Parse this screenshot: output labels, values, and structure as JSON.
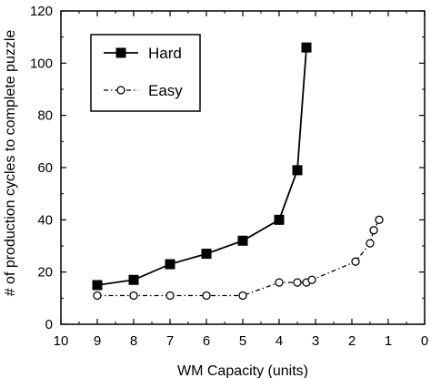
{
  "chart_data": {
    "type": "line",
    "title": "",
    "xlabel": "WM Capacity (units)",
    "ylabel": "# of production cycles to complete puzzle",
    "xlim": [
      10,
      0
    ],
    "ylim": [
      0,
      120
    ],
    "x_reversed": true,
    "x_ticks": [
      10,
      9,
      8,
      7,
      6,
      5,
      4,
      3,
      2,
      1,
      0
    ],
    "y_ticks": [
      0,
      20,
      40,
      60,
      80,
      100,
      120
    ],
    "grid": false,
    "legend_position": "top-left",
    "series": [
      {
        "name": "Hard",
        "marker": "filled-square",
        "line": "solid",
        "color": "#000000",
        "x": [
          9,
          8,
          7,
          6,
          5,
          4,
          3.5,
          3.25
        ],
        "y": [
          15,
          17,
          23,
          27,
          32,
          40,
          59,
          106
        ]
      },
      {
        "name": "Easy",
        "marker": "open-circle",
        "line": "dash-dot",
        "color": "#000000",
        "x": [
          9,
          8,
          7,
          6,
          5,
          4,
          3.5,
          3.25,
          3.1,
          1.9,
          1.5,
          1.4,
          1.25
        ],
        "y": [
          11,
          11,
          11,
          11,
          11,
          16,
          16,
          16,
          17,
          24,
          31,
          36,
          40
        ]
      }
    ]
  }
}
